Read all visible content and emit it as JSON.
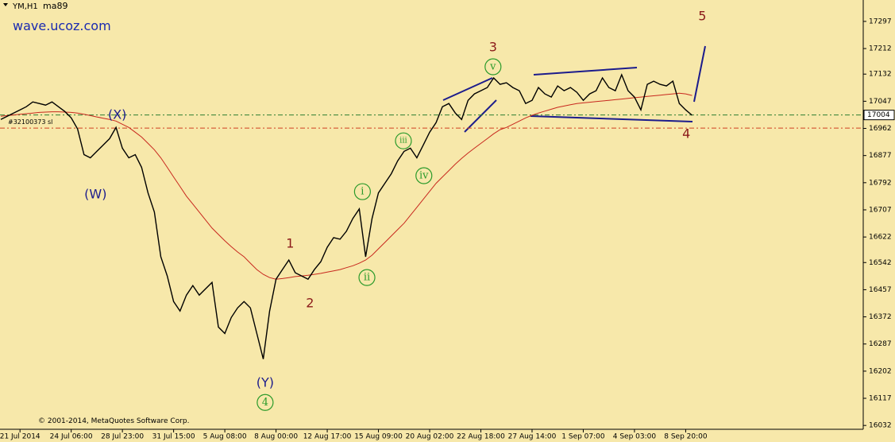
{
  "chart_data": {
    "type": "line",
    "symbol": "YM,H1",
    "indicator": "ma89",
    "watermark": "wave.ucoz.com",
    "copyright": "© 2001-2014, MetaQuotes Software Corp.",
    "categories": [
      null,
      null,
      null,
      "21 Jul 2014",
      null,
      null,
      null,
      null,
      null,
      null,
      null,
      "24 Jul 06:00",
      null,
      null,
      null,
      null,
      null,
      null,
      null,
      "28 Jul 23:00",
      null,
      null,
      null,
      null,
      null,
      null,
      null,
      "31 Jul 15:00",
      null,
      null,
      null,
      null,
      null,
      null,
      null,
      "5 Aug 08:00",
      null,
      null,
      null,
      null,
      null,
      null,
      null,
      "8 Aug 00:00",
      null,
      null,
      null,
      null,
      null,
      null,
      null,
      "12 Aug 17:00",
      null,
      null,
      null,
      null,
      null,
      null,
      null,
      "15 Aug 09:00",
      null,
      null,
      null,
      null,
      null,
      null,
      null,
      "20 Aug 02:00",
      null,
      null,
      null,
      null,
      null,
      null,
      null,
      "22 Aug 18:00",
      null,
      null,
      null,
      null,
      null,
      null,
      null,
      "27 Aug 14:00",
      null,
      null,
      null,
      null,
      null,
      null,
      null,
      "1 Sep 07:00",
      null,
      null,
      null,
      null,
      null,
      null,
      null,
      "4 Sep 03:00",
      null,
      null,
      null,
      null,
      null,
      null,
      null,
      "8 Sep 20:00",
      null
    ],
    "series": [
      {
        "name": "YM,H1",
        "color": "#000000",
        "values": [
          16990,
          17000,
          17010,
          17020,
          17030,
          17045,
          17040,
          17035,
          17045,
          17030,
          17015,
          16995,
          16960,
          16880,
          16870,
          16890,
          16910,
          16930,
          16965,
          16900,
          16870,
          16880,
          16840,
          16760,
          16700,
          16560,
          16500,
          16420,
          16390,
          16440,
          16470,
          16440,
          16460,
          16480,
          16340,
          16320,
          16370,
          16400,
          16420,
          16400,
          16320,
          16240,
          16390,
          16490,
          16520,
          16550,
          16510,
          16500,
          16490,
          16520,
          16545,
          16590,
          16620,
          16615,
          16640,
          16680,
          16710,
          16560,
          16680,
          16760,
          16790,
          16820,
          16860,
          16890,
          16900,
          16870,
          16910,
          16950,
          16980,
          17030,
          17040,
          17010,
          16990,
          17050,
          17070,
          17080,
          17090,
          17120,
          17100,
          17105,
          17090,
          17080,
          17040,
          17050,
          17090,
          17070,
          17060,
          17095,
          17080,
          17090,
          17075,
          17050,
          17070,
          17080,
          17120,
          17090,
          17080,
          17130,
          17080,
          17060,
          17020,
          17100,
          17110,
          17100,
          17095,
          17110,
          17040,
          17020,
          17003
        ]
      },
      {
        "name": "ma89",
        "color": "#c8281e",
        "values": [
          17000,
          17002,
          17004,
          17006,
          17008,
          17010,
          17012,
          17013,
          17014,
          17014,
          17013,
          17012,
          17010,
          17006,
          17002,
          16998,
          16994,
          16990,
          16985,
          16975,
          16965,
          16950,
          16935,
          16915,
          16895,
          16870,
          16840,
          16810,
          16780,
          16750,
          16725,
          16700,
          16675,
          16650,
          16630,
          16610,
          16592,
          16575,
          16560,
          16540,
          16520,
          16505,
          16495,
          16490,
          16492,
          16495,
          16498,
          16500,
          16502,
          16505,
          16508,
          16512,
          16516,
          16520,
          16526,
          16532,
          16540,
          16550,
          16565,
          16585,
          16605,
          16625,
          16645,
          16665,
          16690,
          16715,
          16740,
          16765,
          16790,
          16810,
          16830,
          16850,
          16868,
          16885,
          16900,
          16915,
          16930,
          16945,
          16958,
          16965,
          16975,
          16985,
          16995,
          17003,
          17010,
          17016,
          17022,
          17028,
          17032,
          17036,
          17040,
          17042,
          17044,
          17046,
          17048,
          17050,
          17052,
          17054,
          17056,
          17058,
          17060,
          17062,
          17064,
          17066,
          17068,
          17070,
          17072,
          17070,
          17065
        ]
      }
    ],
    "ylim": [
      16020,
      17364
    ],
    "yticks": [
      16032,
      16117,
      16202,
      16287,
      16372,
      16457,
      16542,
      16622,
      16707,
      16792,
      16877,
      16962,
      17047,
      17132,
      17212,
      17297
    ],
    "current_price": 17004,
    "current_price_color": "#2e7d32",
    "stop_level": {
      "label": "#32100373 sl",
      "value": 16963,
      "color": "#d04020"
    },
    "annotations": [
      {
        "text": "(W)",
        "x": 14.8,
        "y": 16754,
        "color": "#1c1c8c",
        "circled": false
      },
      {
        "text": "(X)",
        "x": 18.2,
        "y": 17003,
        "color": "#1c1c8c",
        "circled": false
      },
      {
        "text": "(Y)",
        "x": 41.3,
        "y": 16164,
        "color": "#1c1c8c",
        "circled": false
      },
      {
        "text": "4",
        "x": 41.3,
        "y": 16104,
        "color": "#2a9a2a",
        "circled": true
      },
      {
        "text": "1",
        "x": 45.2,
        "y": 16600,
        "color": "#8b1a1a",
        "circled": false
      },
      {
        "text": "2",
        "x": 48.3,
        "y": 16413,
        "color": "#8b1a1a",
        "circled": false
      },
      {
        "text": "i",
        "x": 56.5,
        "y": 16764,
        "color": "#2a9a2a",
        "circled": true
      },
      {
        "text": "ii",
        "x": 57.2,
        "y": 16495,
        "color": "#2a9a2a",
        "circled": true
      },
      {
        "text": "iii",
        "x": 62.9,
        "y": 16923,
        "color": "#2a9a2a",
        "circled": true
      },
      {
        "text": "iv",
        "x": 66.1,
        "y": 16814,
        "color": "#2a9a2a",
        "circled": true
      },
      {
        "text": "v",
        "x": 76.9,
        "y": 17155,
        "color": "#2a9a2a",
        "circled": true
      },
      {
        "text": "3",
        "x": 76.9,
        "y": 17215,
        "color": "#8b1a1a",
        "circled": false
      },
      {
        "text": "4",
        "x": 107.1,
        "y": 16943,
        "color": "#8b1a1a",
        "circled": false
      },
      {
        "text": "5",
        "x": 109.6,
        "y": 17312,
        "color": "#8b1a1a",
        "circled": false
      }
    ]
  }
}
